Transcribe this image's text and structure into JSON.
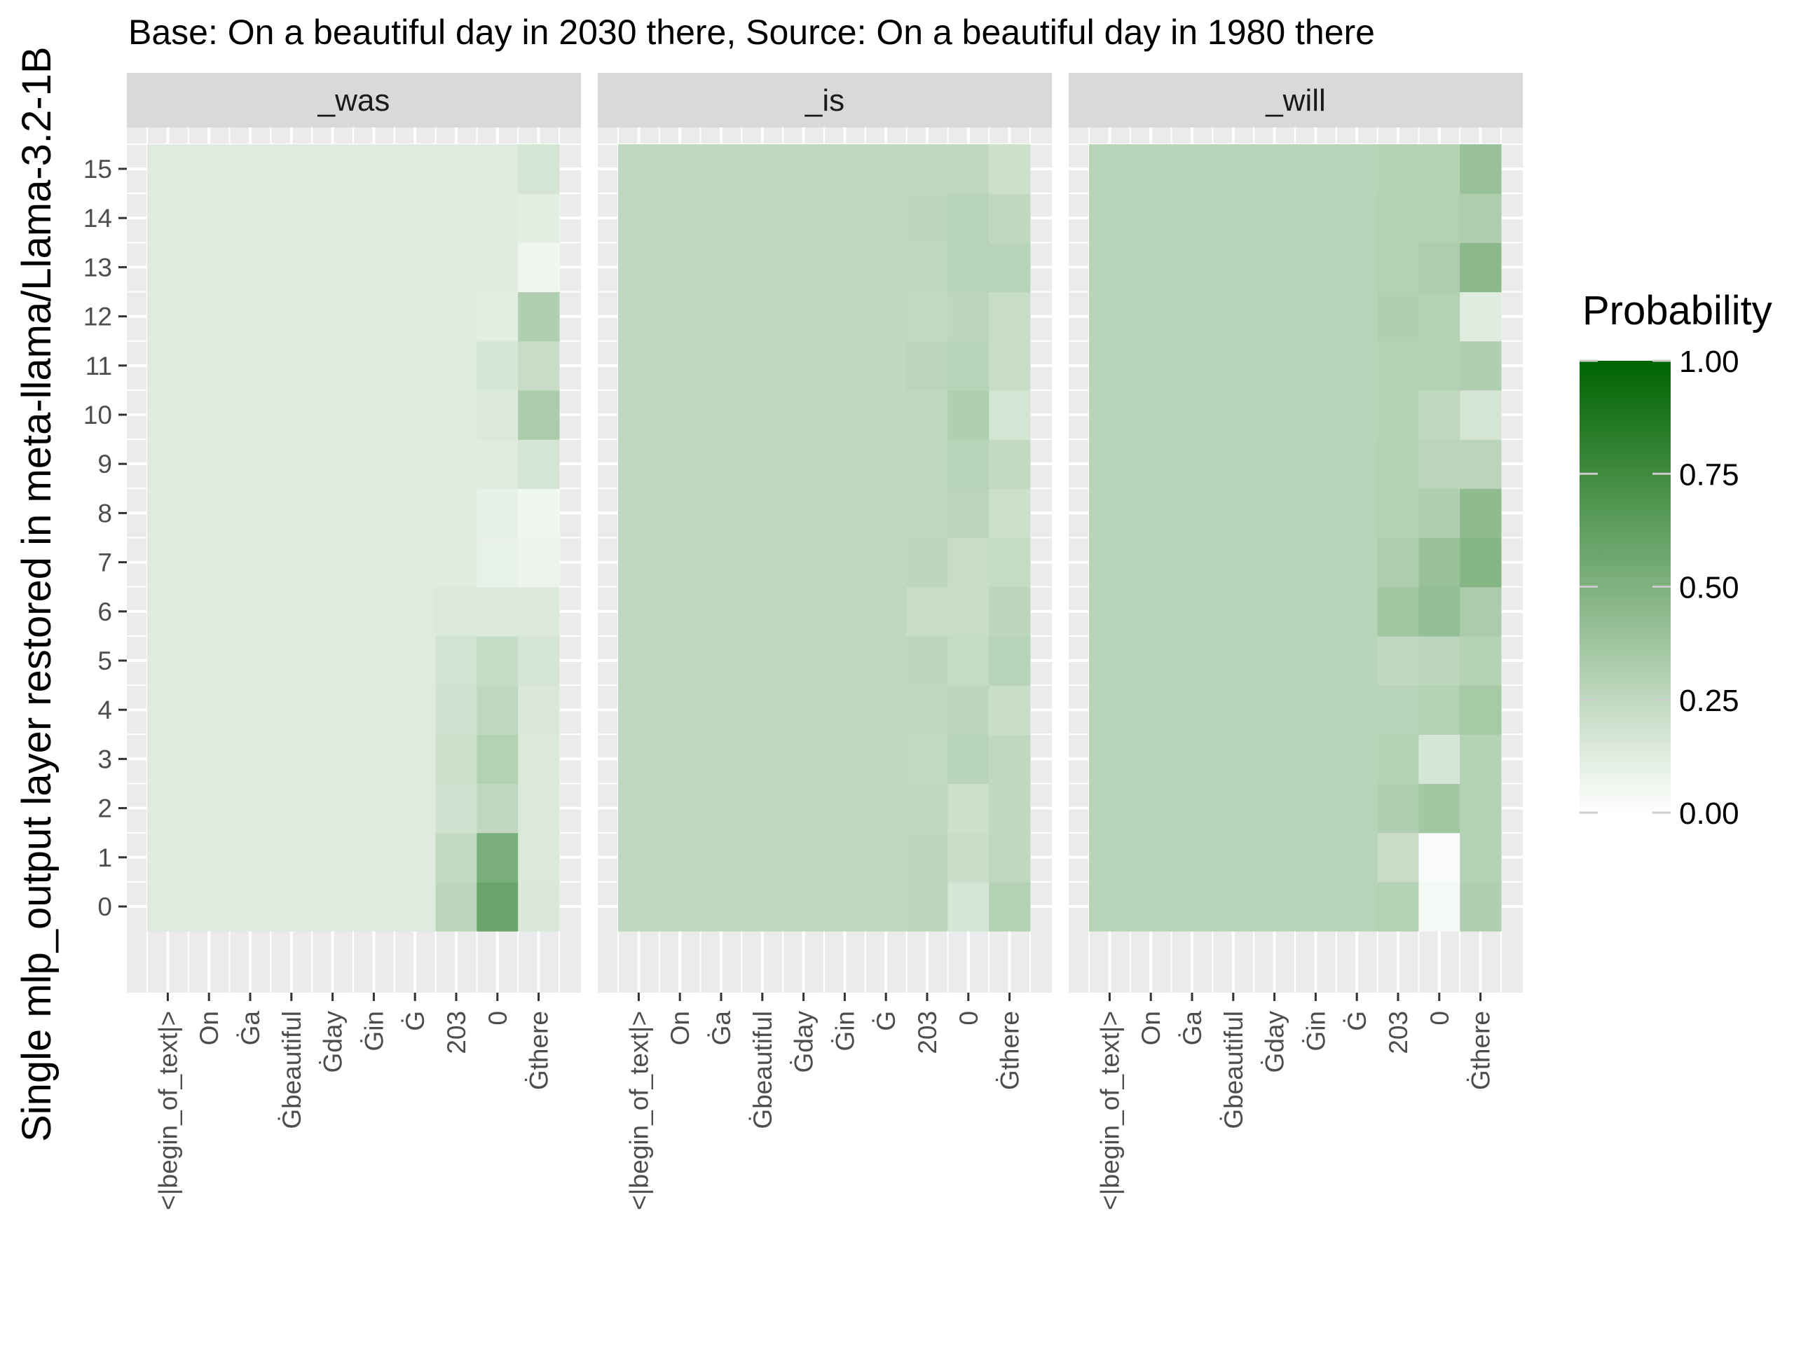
{
  "chart_data": {
    "type": "heatmap",
    "title": "Base: On a beautiful day in 2030 there, Source: On a beautiful day in 1980 there",
    "ylabel": "Single mlp_output layer restored in meta-llama/Llama-3.2-1B",
    "xlabel": "",
    "x_categories": [
      "<|begin_of_text|>",
      "On",
      "Ġa",
      "Ġbeautiful",
      "Ġday",
      "Ġin",
      "Ġ",
      "203",
      "0",
      "Ġthere"
    ],
    "y_categories": [
      "0",
      "1",
      "2",
      "3",
      "4",
      "5",
      "6",
      "7",
      "8",
      "9",
      "10",
      "11",
      "12",
      "13",
      "14",
      "15"
    ],
    "legend": {
      "title": "Probability",
      "breaks": [
        "0.00",
        "0.25",
        "0.50",
        "0.75",
        "1.00"
      ],
      "break_values": [
        0,
        0.25,
        0.5,
        0.75,
        1
      ],
      "low_color": "#ffffff",
      "high_color": "#006400",
      "placement": "right"
    },
    "facets": [
      {
        "label": "_was",
        "rows": [
          [
            0.13,
            0.13,
            0.13,
            0.13,
            0.13,
            0.13,
            0.13,
            0.27,
            0.58,
            0.15
          ],
          [
            0.13,
            0.13,
            0.13,
            0.13,
            0.13,
            0.13,
            0.13,
            0.24,
            0.52,
            0.14
          ],
          [
            0.13,
            0.13,
            0.13,
            0.13,
            0.13,
            0.13,
            0.13,
            0.19,
            0.25,
            0.14
          ],
          [
            0.13,
            0.13,
            0.13,
            0.13,
            0.13,
            0.13,
            0.13,
            0.2,
            0.3,
            0.14
          ],
          [
            0.13,
            0.13,
            0.13,
            0.13,
            0.13,
            0.13,
            0.13,
            0.19,
            0.25,
            0.15
          ],
          [
            0.13,
            0.13,
            0.13,
            0.13,
            0.13,
            0.13,
            0.13,
            0.18,
            0.23,
            0.16
          ],
          [
            0.13,
            0.13,
            0.13,
            0.13,
            0.13,
            0.13,
            0.13,
            0.14,
            0.14,
            0.14
          ],
          [
            0.13,
            0.13,
            0.13,
            0.13,
            0.13,
            0.13,
            0.13,
            0.12,
            0.09,
            0.07
          ],
          [
            0.13,
            0.13,
            0.13,
            0.13,
            0.13,
            0.13,
            0.13,
            0.12,
            0.1,
            0.06
          ],
          [
            0.13,
            0.13,
            0.13,
            0.13,
            0.13,
            0.13,
            0.13,
            0.12,
            0.12,
            0.17
          ],
          [
            0.13,
            0.13,
            0.13,
            0.13,
            0.13,
            0.13,
            0.13,
            0.13,
            0.14,
            0.33
          ],
          [
            0.13,
            0.13,
            0.13,
            0.13,
            0.13,
            0.13,
            0.13,
            0.13,
            0.16,
            0.22
          ],
          [
            0.13,
            0.13,
            0.13,
            0.13,
            0.13,
            0.13,
            0.13,
            0.12,
            0.11,
            0.31
          ],
          [
            0.13,
            0.13,
            0.13,
            0.13,
            0.13,
            0.13,
            0.13,
            0.13,
            0.13,
            0.06
          ],
          [
            0.13,
            0.13,
            0.13,
            0.13,
            0.13,
            0.13,
            0.13,
            0.13,
            0.13,
            0.11
          ],
          [
            0.13,
            0.13,
            0.13,
            0.13,
            0.13,
            0.13,
            0.13,
            0.13,
            0.13,
            0.17
          ]
        ]
      },
      {
        "label": "_is",
        "rows": [
          [
            0.25,
            0.25,
            0.25,
            0.25,
            0.25,
            0.25,
            0.25,
            0.26,
            0.16,
            0.3
          ],
          [
            0.25,
            0.25,
            0.25,
            0.25,
            0.25,
            0.25,
            0.25,
            0.26,
            0.21,
            0.25
          ],
          [
            0.25,
            0.25,
            0.25,
            0.25,
            0.25,
            0.25,
            0.25,
            0.25,
            0.2,
            0.25
          ],
          [
            0.25,
            0.25,
            0.25,
            0.25,
            0.25,
            0.25,
            0.25,
            0.24,
            0.28,
            0.25
          ],
          [
            0.25,
            0.25,
            0.25,
            0.25,
            0.25,
            0.25,
            0.25,
            0.25,
            0.26,
            0.21
          ],
          [
            0.25,
            0.25,
            0.25,
            0.25,
            0.25,
            0.25,
            0.25,
            0.26,
            0.23,
            0.28
          ],
          [
            0.25,
            0.25,
            0.25,
            0.25,
            0.25,
            0.25,
            0.25,
            0.21,
            0.22,
            0.26
          ],
          [
            0.25,
            0.25,
            0.25,
            0.25,
            0.25,
            0.25,
            0.25,
            0.26,
            0.22,
            0.23
          ],
          [
            0.25,
            0.25,
            0.25,
            0.25,
            0.25,
            0.25,
            0.25,
            0.25,
            0.27,
            0.2
          ],
          [
            0.25,
            0.25,
            0.25,
            0.25,
            0.25,
            0.25,
            0.25,
            0.25,
            0.28,
            0.24
          ],
          [
            0.25,
            0.25,
            0.25,
            0.25,
            0.25,
            0.25,
            0.25,
            0.25,
            0.31,
            0.17
          ],
          [
            0.25,
            0.25,
            0.25,
            0.25,
            0.25,
            0.25,
            0.25,
            0.27,
            0.28,
            0.22
          ],
          [
            0.25,
            0.25,
            0.25,
            0.25,
            0.25,
            0.25,
            0.25,
            0.24,
            0.26,
            0.22
          ],
          [
            0.25,
            0.25,
            0.25,
            0.25,
            0.25,
            0.25,
            0.25,
            0.25,
            0.28,
            0.28
          ],
          [
            0.25,
            0.25,
            0.25,
            0.25,
            0.25,
            0.25,
            0.25,
            0.26,
            0.28,
            0.25
          ],
          [
            0.25,
            0.25,
            0.25,
            0.25,
            0.25,
            0.25,
            0.25,
            0.25,
            0.25,
            0.2
          ]
        ]
      },
      {
        "label": "_will",
        "rows": [
          [
            0.28,
            0.28,
            0.28,
            0.28,
            0.28,
            0.28,
            0.28,
            0.3,
            0.04,
            0.31
          ],
          [
            0.28,
            0.28,
            0.28,
            0.28,
            0.28,
            0.28,
            0.28,
            0.22,
            0.02,
            0.3
          ],
          [
            0.28,
            0.28,
            0.28,
            0.28,
            0.28,
            0.28,
            0.28,
            0.31,
            0.36,
            0.3
          ],
          [
            0.28,
            0.28,
            0.28,
            0.28,
            0.28,
            0.28,
            0.28,
            0.29,
            0.16,
            0.29
          ],
          [
            0.28,
            0.28,
            0.28,
            0.28,
            0.28,
            0.28,
            0.28,
            0.28,
            0.3,
            0.35
          ],
          [
            0.28,
            0.28,
            0.28,
            0.28,
            0.28,
            0.28,
            0.28,
            0.25,
            0.26,
            0.29
          ],
          [
            0.28,
            0.28,
            0.28,
            0.28,
            0.28,
            0.28,
            0.28,
            0.37,
            0.42,
            0.33
          ],
          [
            0.28,
            0.28,
            0.28,
            0.28,
            0.28,
            0.28,
            0.28,
            0.32,
            0.4,
            0.48
          ],
          [
            0.28,
            0.28,
            0.28,
            0.28,
            0.28,
            0.28,
            0.28,
            0.3,
            0.31,
            0.44
          ],
          [
            0.28,
            0.28,
            0.28,
            0.28,
            0.28,
            0.28,
            0.28,
            0.3,
            0.27,
            0.27
          ],
          [
            0.28,
            0.28,
            0.28,
            0.28,
            0.28,
            0.28,
            0.28,
            0.29,
            0.25,
            0.17
          ],
          [
            0.28,
            0.28,
            0.28,
            0.28,
            0.28,
            0.28,
            0.28,
            0.29,
            0.3,
            0.31
          ],
          [
            0.28,
            0.28,
            0.28,
            0.28,
            0.28,
            0.28,
            0.28,
            0.31,
            0.3,
            0.12
          ],
          [
            0.28,
            0.28,
            0.28,
            0.28,
            0.28,
            0.28,
            0.28,
            0.3,
            0.32,
            0.45
          ],
          [
            0.28,
            0.28,
            0.28,
            0.28,
            0.28,
            0.28,
            0.28,
            0.3,
            0.3,
            0.32
          ],
          [
            0.28,
            0.28,
            0.28,
            0.28,
            0.28,
            0.28,
            0.28,
            0.29,
            0.29,
            0.4
          ]
        ]
      }
    ]
  }
}
